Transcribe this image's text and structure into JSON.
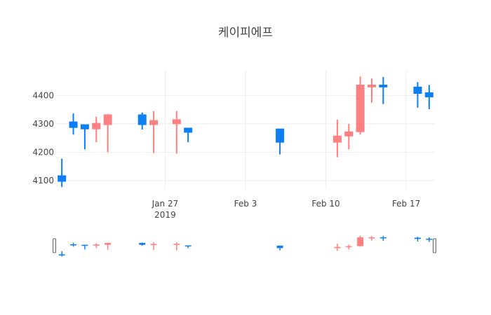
{
  "title": "케이피에프",
  "colors": {
    "increasing": "#ff8080",
    "decreasing": "#0d7ff2",
    "grid": "#eeeeee",
    "tick_text": "#444444",
    "handle_fill": "#f2f2f2",
    "handle_stroke": "#666666"
  },
  "chart_data": {
    "type": "candlestick",
    "title": "케이피에프",
    "x_axis": {
      "type": "date",
      "range": [
        "2019-01-18",
        "2019-02-19"
      ],
      "ticks": [
        {
          "date": "2019-01-27",
          "label": "Jan 27",
          "sublabel": "2019"
        },
        {
          "date": "2019-02-03",
          "label": "Feb 3",
          "sublabel": ""
        },
        {
          "date": "2019-02-10",
          "label": "Feb 10",
          "sublabel": ""
        },
        {
          "date": "2019-02-17",
          "label": "Feb 17",
          "sublabel": ""
        }
      ]
    },
    "y_axis": {
      "range": [
        4070,
        4490
      ],
      "ticks": [
        4100,
        4200,
        4300,
        4400
      ]
    },
    "grid": true,
    "rangeslider": true,
    "candles": [
      {
        "date": "2019-01-18",
        "open": 4117,
        "high": 4177,
        "low": 4077,
        "close": 4097
      },
      {
        "date": "2019-01-19",
        "open": 4307,
        "high": 4337,
        "low": 4262,
        "close": 4287
      },
      {
        "date": "2019-01-20",
        "open": 4297,
        "high": 4297,
        "low": 4210,
        "close": 4282
      },
      {
        "date": "2019-01-21",
        "open": 4282,
        "high": 4325,
        "low": 4235,
        "close": 4302
      },
      {
        "date": "2019-01-22",
        "open": 4297,
        "high": 4335,
        "low": 4200,
        "close": 4332
      },
      {
        "date": "2019-01-25",
        "open": 4332,
        "high": 4340,
        "low": 4280,
        "close": 4297
      },
      {
        "date": "2019-01-26",
        "open": 4297,
        "high": 4345,
        "low": 4197,
        "close": 4312
      },
      {
        "date": "2019-01-28",
        "open": 4300,
        "high": 4345,
        "low": 4195,
        "close": 4315
      },
      {
        "date": "2019-01-29",
        "open": 4285,
        "high": 4285,
        "low": 4235,
        "close": 4270
      },
      {
        "date": "2019-02-06",
        "open": 4282,
        "high": 4282,
        "low": 4192,
        "close": 4235
      },
      {
        "date": "2019-02-11",
        "open": 4235,
        "high": 4315,
        "low": 4182,
        "close": 4257
      },
      {
        "date": "2019-02-12",
        "open": 4257,
        "high": 4300,
        "low": 4210,
        "close": 4272
      },
      {
        "date": "2019-02-13",
        "open": 4272,
        "high": 4467,
        "low": 4262,
        "close": 4437
      },
      {
        "date": "2019-02-14",
        "open": 4430,
        "high": 4460,
        "low": 4375,
        "close": 4437
      },
      {
        "date": "2019-02-15",
        "open": 4437,
        "high": 4465,
        "low": 4370,
        "close": 4430
      },
      {
        "date": "2019-02-18",
        "open": 4430,
        "high": 4447,
        "low": 4357,
        "close": 4407
      },
      {
        "date": "2019-02-19",
        "open": 4410,
        "high": 4437,
        "low": 4352,
        "close": 4395
      }
    ]
  }
}
